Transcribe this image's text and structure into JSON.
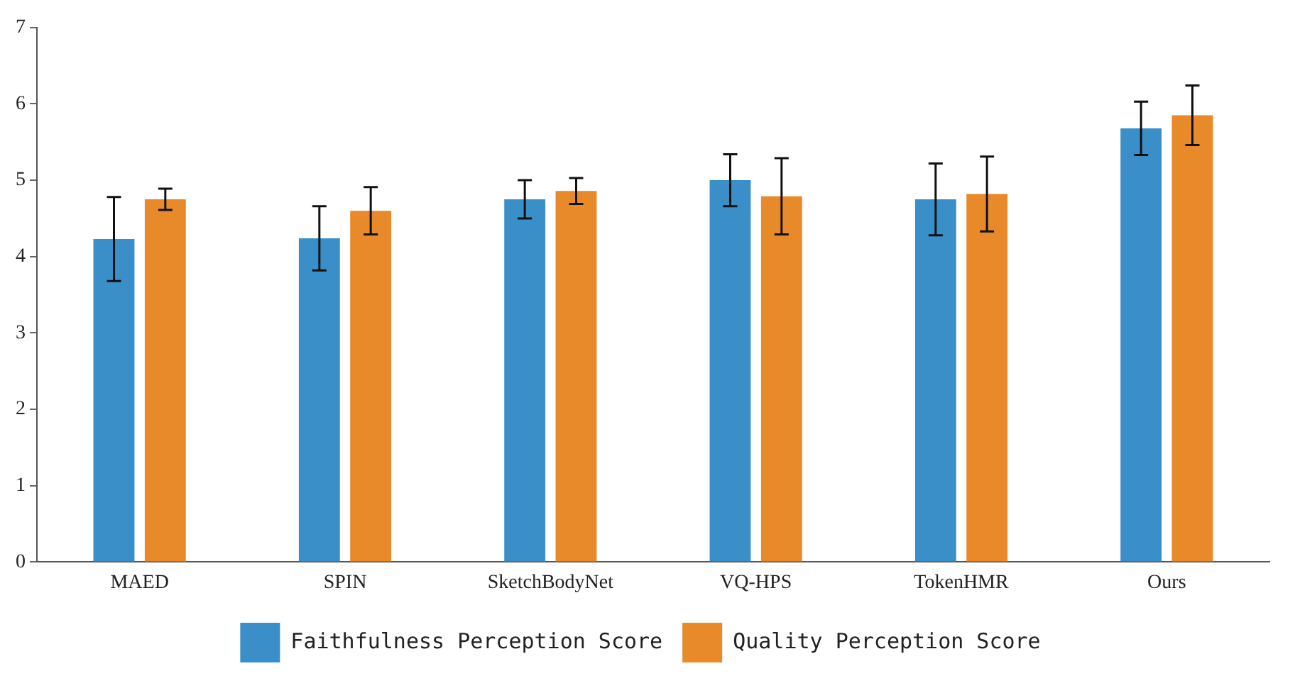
{
  "chart_data": {
    "type": "bar",
    "categories": [
      "MAED",
      "SPIN",
      "SketchBodyNet",
      "VQ-HPS",
      "TokenHMR",
      "Ours"
    ],
    "series": [
      {
        "name": "Faithfulness Perception Score",
        "color": "#3a8fc8",
        "values": [
          4.23,
          4.24,
          4.75,
          5.0,
          4.75,
          5.68
        ],
        "errors": [
          0.55,
          0.42,
          0.25,
          0.34,
          0.47,
          0.35
        ]
      },
      {
        "name": "Quality Perception Score",
        "color": "#e8892a",
        "values": [
          4.75,
          4.6,
          4.86,
          4.79,
          4.82,
          5.85
        ],
        "errors": [
          0.14,
          0.31,
          0.17,
          0.5,
          0.49,
          0.39
        ]
      }
    ],
    "ylim": [
      0,
      7
    ],
    "yticks": [
      0,
      1,
      2,
      3,
      4,
      5,
      6,
      7
    ],
    "grid": false,
    "legend": "bottom"
  }
}
